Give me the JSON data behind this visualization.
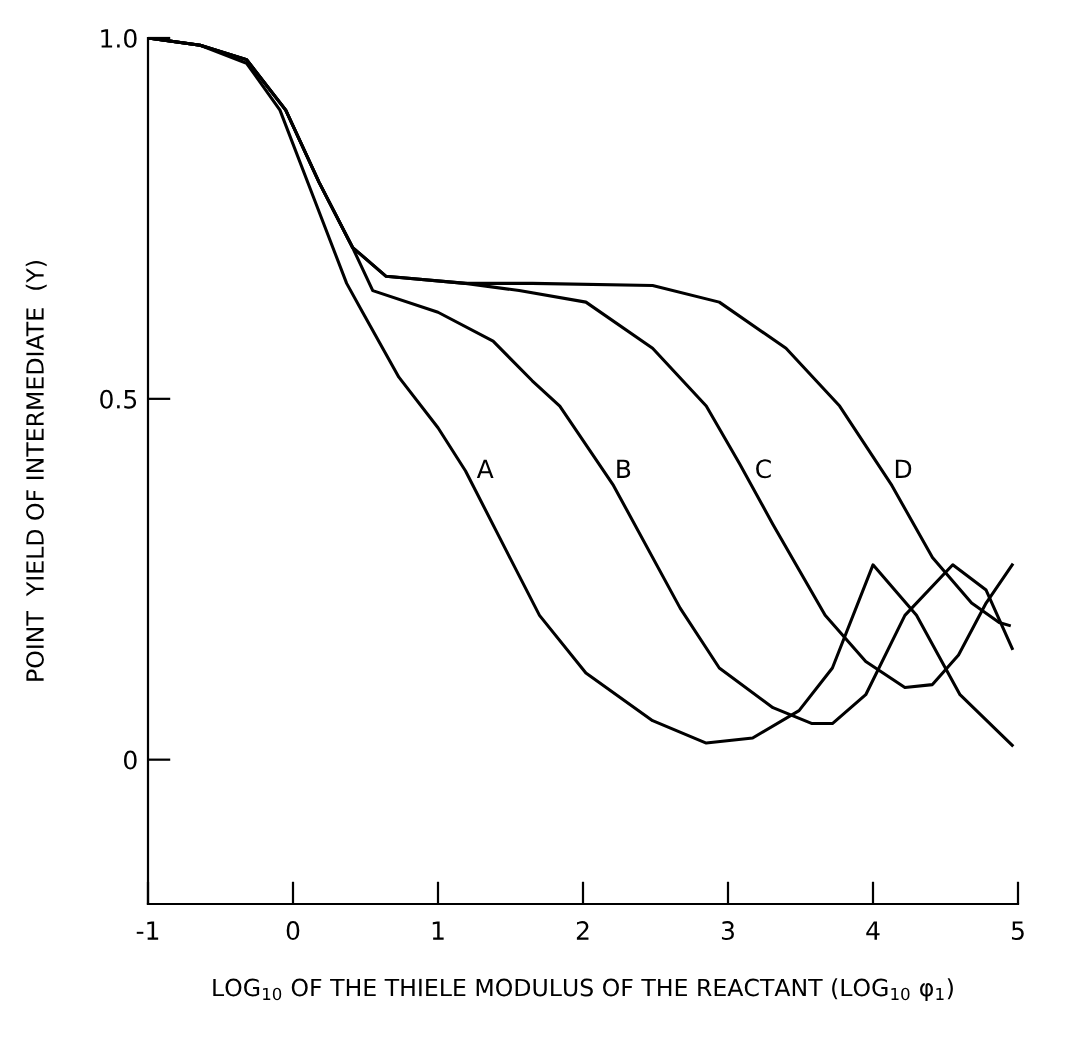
{
  "chart_data": {
    "type": "line",
    "xlabel": "LOG$_{10}$ OF THE THIELE MODULUS OF THE REACTANT (LOG$_{10}$ φ$_{1}$)",
    "ylabel": "POINT  YIELD OF INTERMEDIATE  (Y)",
    "xlim": [
      -1,
      5
    ],
    "ylim": [
      -0.2,
      1.0
    ],
    "xticks": [
      -1,
      0,
      1,
      2,
      3,
      4,
      5
    ],
    "yticks": [
      0,
      {
        "value": 0.5,
        "label": "0.5"
      },
      {
        "value": 1.0,
        "label": "1.0"
      }
    ],
    "grid": false,
    "legend": false,
    "marker": "none",
    "line_style": "solid",
    "series": [
      {
        "name": "A",
        "color": "#000000",
        "x": [
          -1,
          -0.64,
          -0.32,
          -0.09,
          0.14,
          0.37,
          0.48,
          0.73,
          1.0,
          1.19,
          1.47,
          1.7,
          2.02,
          2.48,
          2.85,
          3.17,
          3.49,
          3.72,
          4.0,
          4.3,
          4.6,
          4.96
        ],
        "values": [
          1.0,
          0.99,
          0.965,
          0.9,
          0.78,
          0.66,
          0.62,
          0.53,
          0.46,
          0.4,
          0.29,
          0.2,
          0.12,
          0.054,
          0.023,
          0.03,
          0.068,
          0.127,
          0.27,
          0.2,
          0.09,
          0.02
        ]
      },
      {
        "name": "B",
        "color": "#000000",
        "x": [
          -1,
          -0.64,
          -0.32,
          -0.05,
          0.18,
          0.41,
          0.55,
          1.0,
          1.38,
          1.65,
          1.84,
          2.21,
          2.67,
          2.94,
          3.31,
          3.58,
          3.72,
          3.95,
          4.22,
          4.55,
          4.78,
          4.96
        ],
        "values": [
          1.0,
          0.99,
          0.97,
          0.9,
          0.8,
          0.71,
          0.65,
          0.62,
          0.58,
          0.525,
          0.49,
          0.38,
          0.21,
          0.127,
          0.072,
          0.05,
          0.05,
          0.09,
          0.2,
          0.27,
          0.235,
          0.154
        ]
      },
      {
        "name": "C",
        "color": "#000000",
        "x": [
          -1,
          -0.64,
          -0.32,
          -0.05,
          0.18,
          0.41,
          0.64,
          1.19,
          1.56,
          2.02,
          2.48,
          2.85,
          3.08,
          3.31,
          3.67,
          3.95,
          4.22,
          4.41,
          4.59,
          4.78,
          4.96
        ],
        "values": [
          1.0,
          0.99,
          0.97,
          0.9,
          0.8,
          0.71,
          0.67,
          0.66,
          0.65,
          0.634,
          0.57,
          0.49,
          0.41,
          0.326,
          0.2,
          0.136,
          0.1,
          0.104,
          0.145,
          0.217,
          0.27
        ]
      },
      {
        "name": "D",
        "color": "#000000",
        "x": [
          -1,
          -0.64,
          -0.32,
          -0.05,
          0.18,
          0.41,
          0.64,
          1.19,
          1.65,
          2.48,
          2.94,
          3.4,
          3.77,
          4.13,
          4.41,
          4.68,
          4.87,
          4.94
        ],
        "values": [
          1.0,
          0.99,
          0.97,
          0.9,
          0.8,
          0.71,
          0.67,
          0.66,
          0.66,
          0.657,
          0.634,
          0.57,
          0.49,
          0.38,
          0.28,
          0.217,
          0.19,
          0.186
        ]
      }
    ]
  }
}
